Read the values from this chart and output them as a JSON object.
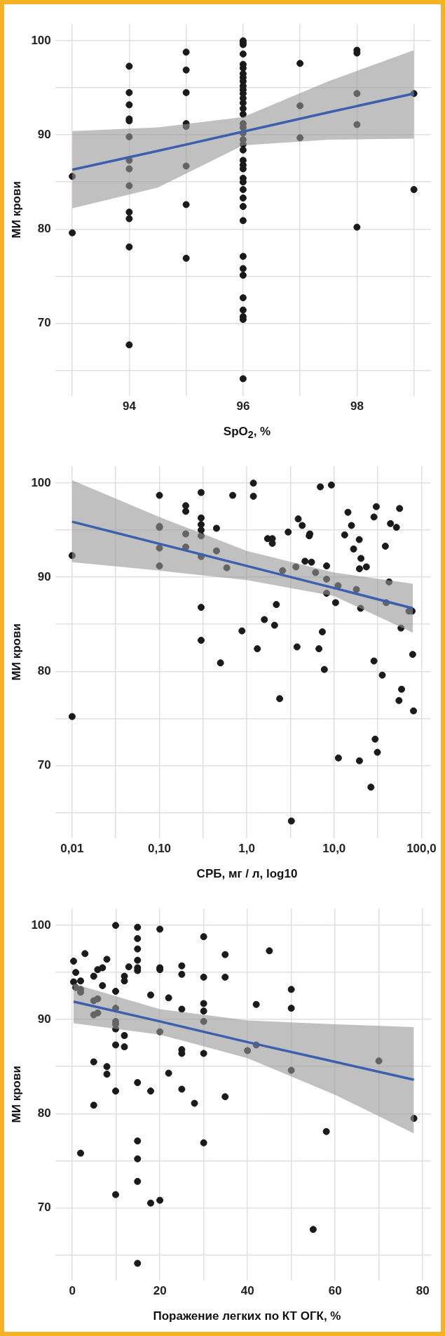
{
  "chart_data": [
    {
      "type": "scatter",
      "xlabel": "SpO$_{2}$, %",
      "ylabel": "МИ крови",
      "xlim": [
        92.7,
        99.3
      ],
      "ylim": [
        62.3,
        101.8
      ],
      "xticks": [
        {
          "value": 93,
          "label": null
        },
        94,
        {
          "value": 95,
          "label": null
        },
        96,
        {
          "value": 97,
          "label": null
        },
        98,
        {
          "value": 99,
          "label": null
        }
      ],
      "yticks": [
        {
          "value": 65,
          "label": null
        },
        70,
        {
          "value": 75,
          "label": null
        },
        80,
        {
          "value": 85,
          "label": null
        },
        90,
        {
          "value": 95,
          "label": null
        },
        100
      ],
      "grid": true,
      "series": [
        {
          "color": "#1a1a1a",
          "marker": "circle",
          "x": [
            93,
            93,
            94,
            94,
            94,
            94,
            94,
            94,
            94,
            94,
            94,
            94,
            94,
            94,
            94,
            95,
            95,
            95,
            95,
            95,
            95,
            95,
            95,
            96,
            96,
            96,
            96,
            96,
            96,
            96,
            96,
            96,
            96,
            96,
            96,
            96,
            96,
            96,
            96,
            96,
            96,
            96,
            96,
            96,
            96,
            96,
            96,
            96,
            96,
            96,
            96,
            96,
            96,
            96,
            96,
            96,
            96,
            96,
            96,
            96,
            96,
            96,
            97,
            97,
            97,
            98,
            98,
            98,
            98,
            98,
            99,
            99
          ],
          "values": [
            85.6,
            79.6,
            97.3,
            94.5,
            93.2,
            91.7,
            91.5,
            89.8,
            87.3,
            86.4,
            84.6,
            81.8,
            81.1,
            78.1,
            67.7,
            98.8,
            96.9,
            94.5,
            91.2,
            90.9,
            86.7,
            82.6,
            76.9,
            100,
            99.8,
            99.6,
            98.6,
            97.5,
            97.1,
            96.5,
            96.1,
            95.7,
            95.2,
            94.8,
            94.4,
            93.9,
            93.4,
            92.8,
            92.2,
            91.2,
            90.8,
            90.2,
            89.5,
            89.0,
            88.4,
            87.3,
            86.8,
            86.4,
            85.4,
            85.0,
            84.2,
            83.3,
            82.4,
            80.9,
            77.1,
            75.8,
            75.1,
            72.7,
            71.4,
            70.7,
            70.4,
            64.1,
            97.6,
            93.1,
            89.7,
            99.0,
            98.7,
            94.4,
            91.1,
            80.2,
            94.4,
            84.2
          ]
        },
        {
          "type": "line",
          "color": "#3c5fae",
          "marker": "none",
          "x": [
            93,
            94.5,
            96,
            97.5,
            99
          ],
          "values": [
            86.3,
            88.3,
            90.35,
            92.4,
            94.4
          ],
          "lower": [
            82.2,
            84.4,
            88.9,
            89.5,
            89.6
          ],
          "upper": [
            90.4,
            90.8,
            91.9,
            95.7,
            99.0
          ]
        }
      ]
    },
    {
      "type": "scatter",
      "xlabel": "СРБ, мг / л, log10",
      "ylabel": "МИ крови",
      "log": "x",
      "xlim": [
        0.0064,
        127
      ],
      "ylim": [
        62.3,
        101.8
      ],
      "xticks": [
        {
          "value": 0.01,
          "label": "0,01"
        },
        {
          "value": 0.0316,
          "label": null
        },
        {
          "value": 0.1,
          "label": "0,10"
        },
        {
          "value": 0.316,
          "label": null
        },
        {
          "value": 1,
          "label": "1,0"
        },
        {
          "value": 3.16,
          "label": null
        },
        {
          "value": 10,
          "label": "10,0"
        },
        {
          "value": 31.6,
          "label": null
        },
        {
          "value": 100,
          "label": "100,0"
        }
      ],
      "yticks": [
        {
          "value": 65,
          "label": null
        },
        70,
        {
          "value": 75,
          "label": null
        },
        80,
        {
          "value": 85,
          "label": null
        },
        90,
        {
          "value": 95,
          "label": null
        },
        100
      ],
      "grid": true,
      "series": [
        {
          "color": "#1a1a1a",
          "marker": "circle",
          "x": [
            0.01,
            0.01,
            0.1,
            0.1,
            0.1,
            0.1,
            0.1,
            0.2,
            0.2,
            0.2,
            0.2,
            0.3,
            0.3,
            0.3,
            0.3,
            0.3,
            0.3,
            0.3,
            0.3,
            0.45,
            0.45,
            0.5,
            0.59,
            0.69,
            0.88,
            1.19,
            1.19,
            1.32,
            1.59,
            1.73,
            1.96,
            1.96,
            2.08,
            2.18,
            2.38,
            2.57,
            2.98,
            3.24,
            3.65,
            3.76,
            3.88,
            4.31,
            4.64,
            5.19,
            5.27,
            5.51,
            6.13,
            6.7,
            6.95,
            7.33,
            7.73,
            8.2,
            8.2,
            8.2,
            9.31,
            10.4,
            11.1,
            11.2,
            13.2,
            14.4,
            15.8,
            16.7,
            18.0,
            19.4,
            19.5,
            20.1,
            20.3,
            19.5,
            23.4,
            26.4,
            28.6,
            28.6,
            29.5,
            30.4,
            31.3,
            35.6,
            38.6,
            39.5,
            42.6,
            44.2,
            51.7,
            55.3,
            56.2,
            58.3,
            59.2,
            71.9,
            78.1,
            79.3,
            81.1
          ],
          "values": [
            92.3,
            75.2,
            98.7,
            95.4,
            95.3,
            93.1,
            91.2,
            97.6,
            97.0,
            94.6,
            93.2,
            99.0,
            96.3,
            95.6,
            95.0,
            94.4,
            92.2,
            86.8,
            83.3,
            95.2,
            92.8,
            80.9,
            91.0,
            98.7,
            84.3,
            100.0,
            98.6,
            82.4,
            85.5,
            94.1,
            94.1,
            93.6,
            84.9,
            87.1,
            77.1,
            90.7,
            94.8,
            64.1,
            91.1,
            82.6,
            96.2,
            95.5,
            91.7,
            94.4,
            94.6,
            91.6,
            90.5,
            82.4,
            99.6,
            84.2,
            80.2,
            91.2,
            89.8,
            88.3,
            99.8,
            87.3,
            89.1,
            70.8,
            94.5,
            96.9,
            95.5,
            93.0,
            88.7,
            94.0,
            70.5,
            86.7,
            92.0,
            90.9,
            91.1,
            67.7,
            96.4,
            81.1,
            72.8,
            97.5,
            71.4,
            79.6,
            93.3,
            87.3,
            89.5,
            95.7,
            95.3,
            76.9,
            97.3,
            84.6,
            78.1,
            86.4,
            86.4,
            81.8,
            75.8
          ]
        },
        {
          "type": "line",
          "color": "#3c5fae",
          "marker": "none",
          "x": [
            0.01,
            0.1,
            1,
            10,
            79.9
          ],
          "values": [
            95.9,
            93.55,
            91.2,
            88.85,
            86.7
          ],
          "lower": [
            91.6,
            90.7,
            89.7,
            88.0,
            84.1
          ],
          "upper": [
            100.3,
            96.4,
            92.8,
            90.5,
            89.3
          ]
        }
      ]
    },
    {
      "type": "scatter",
      "xlabel": "Поражение легких по КТ ОГК, %",
      "ylabel": "МИ крови",
      "xlim": [
        -3.9,
        81.9
      ],
      "ylim": [
        62.3,
        101.8
      ],
      "xticks": [
        0,
        {
          "value": 10,
          "label": null
        },
        20,
        {
          "value": 30,
          "label": null
        },
        40,
        {
          "value": 50,
          "label": null
        },
        60,
        {
          "value": 70,
          "label": null
        },
        80
      ],
      "yticks": [
        {
          "value": 65,
          "label": null
        },
        70,
        {
          "value": 75,
          "label": null
        },
        80,
        {
          "value": 85,
          "label": null
        },
        90,
        {
          "value": 95,
          "label": null
        },
        100
      ],
      "grid": true,
      "series": [
        {
          "color": "#1a1a1a",
          "marker": "circle",
          "x": [
            0.3,
            0.8,
            0.3,
            0.8,
            1.9,
            1.9,
            1.9,
            2.9,
            1.9,
            4.9,
            4.9,
            5.8,
            4.9,
            5.8,
            4.9,
            4.9,
            5.8,
            6.9,
            6.9,
            7.9,
            7.9,
            7.9,
            9.9,
            9.9,
            9.9,
            9.9,
            9.9,
            9.9,
            9.9,
            9.9,
            9.9,
            11.9,
            11.9,
            11.9,
            11.9,
            12.9,
            14.9,
            14.9,
            14.9,
            14.9,
            14.9,
            14.9,
            14.9,
            14.9,
            14.9,
            14.9,
            14.9,
            17.9,
            17.9,
            17.9,
            20,
            20,
            20,
            20,
            20,
            22,
            22,
            25,
            25,
            25,
            25,
            25,
            25,
            27.9,
            30,
            30,
            30,
            30,
            30,
            30,
            30,
            34.9,
            34.9,
            34.9,
            45,
            50,
            42,
            50,
            40,
            42,
            50,
            70,
            78,
            58,
            55
          ],
          "values": [
            96.2,
            95.0,
            94.0,
            93.4,
            94.1,
            93.2,
            92.9,
            97.0,
            75.8,
            94.6,
            92.0,
            92.2,
            90.5,
            90.7,
            85.5,
            80.9,
            95.3,
            95.5,
            93.6,
            96.4,
            85.0,
            84.2,
            100.0,
            93.0,
            91.2,
            89.8,
            89.5,
            89.0,
            87.3,
            82.4,
            71.4,
            94.6,
            94.1,
            88.3,
            87.1,
            95.6,
            99.8,
            98.6,
            97.5,
            96.3,
            95.5,
            95.2,
            83.3,
            77.1,
            75.2,
            72.8,
            64.1,
            92.6,
            82.4,
            70.5,
            99.6,
            95.5,
            95.3,
            88.7,
            70.8,
            92.3,
            84.3,
            95.7,
            94.8,
            91.1,
            86.8,
            86.4,
            82.6,
            81.1,
            98.8,
            94.5,
            91.7,
            90.9,
            89.8,
            86.4,
            76.9,
            96.9,
            94.5,
            81.8,
            97.3,
            93.2,
            91.6,
            91.2,
            86.7,
            87.3,
            84.6,
            85.6,
            79.5,
            78.1,
            67.7
          ]
        },
        {
          "type": "line",
          "color": "#3c5fae",
          "marker": "none",
          "x": [
            0.3,
            20,
            40,
            60,
            78
          ],
          "values": [
            91.9,
            89.8,
            87.6,
            85.5,
            83.6
          ],
          "lower": [
            89.6,
            88.4,
            85.9,
            82.0,
            77.9
          ],
          "upper": [
            93.8,
            91.1,
            89.9,
            89.5,
            89.2
          ]
        }
      ]
    }
  ]
}
